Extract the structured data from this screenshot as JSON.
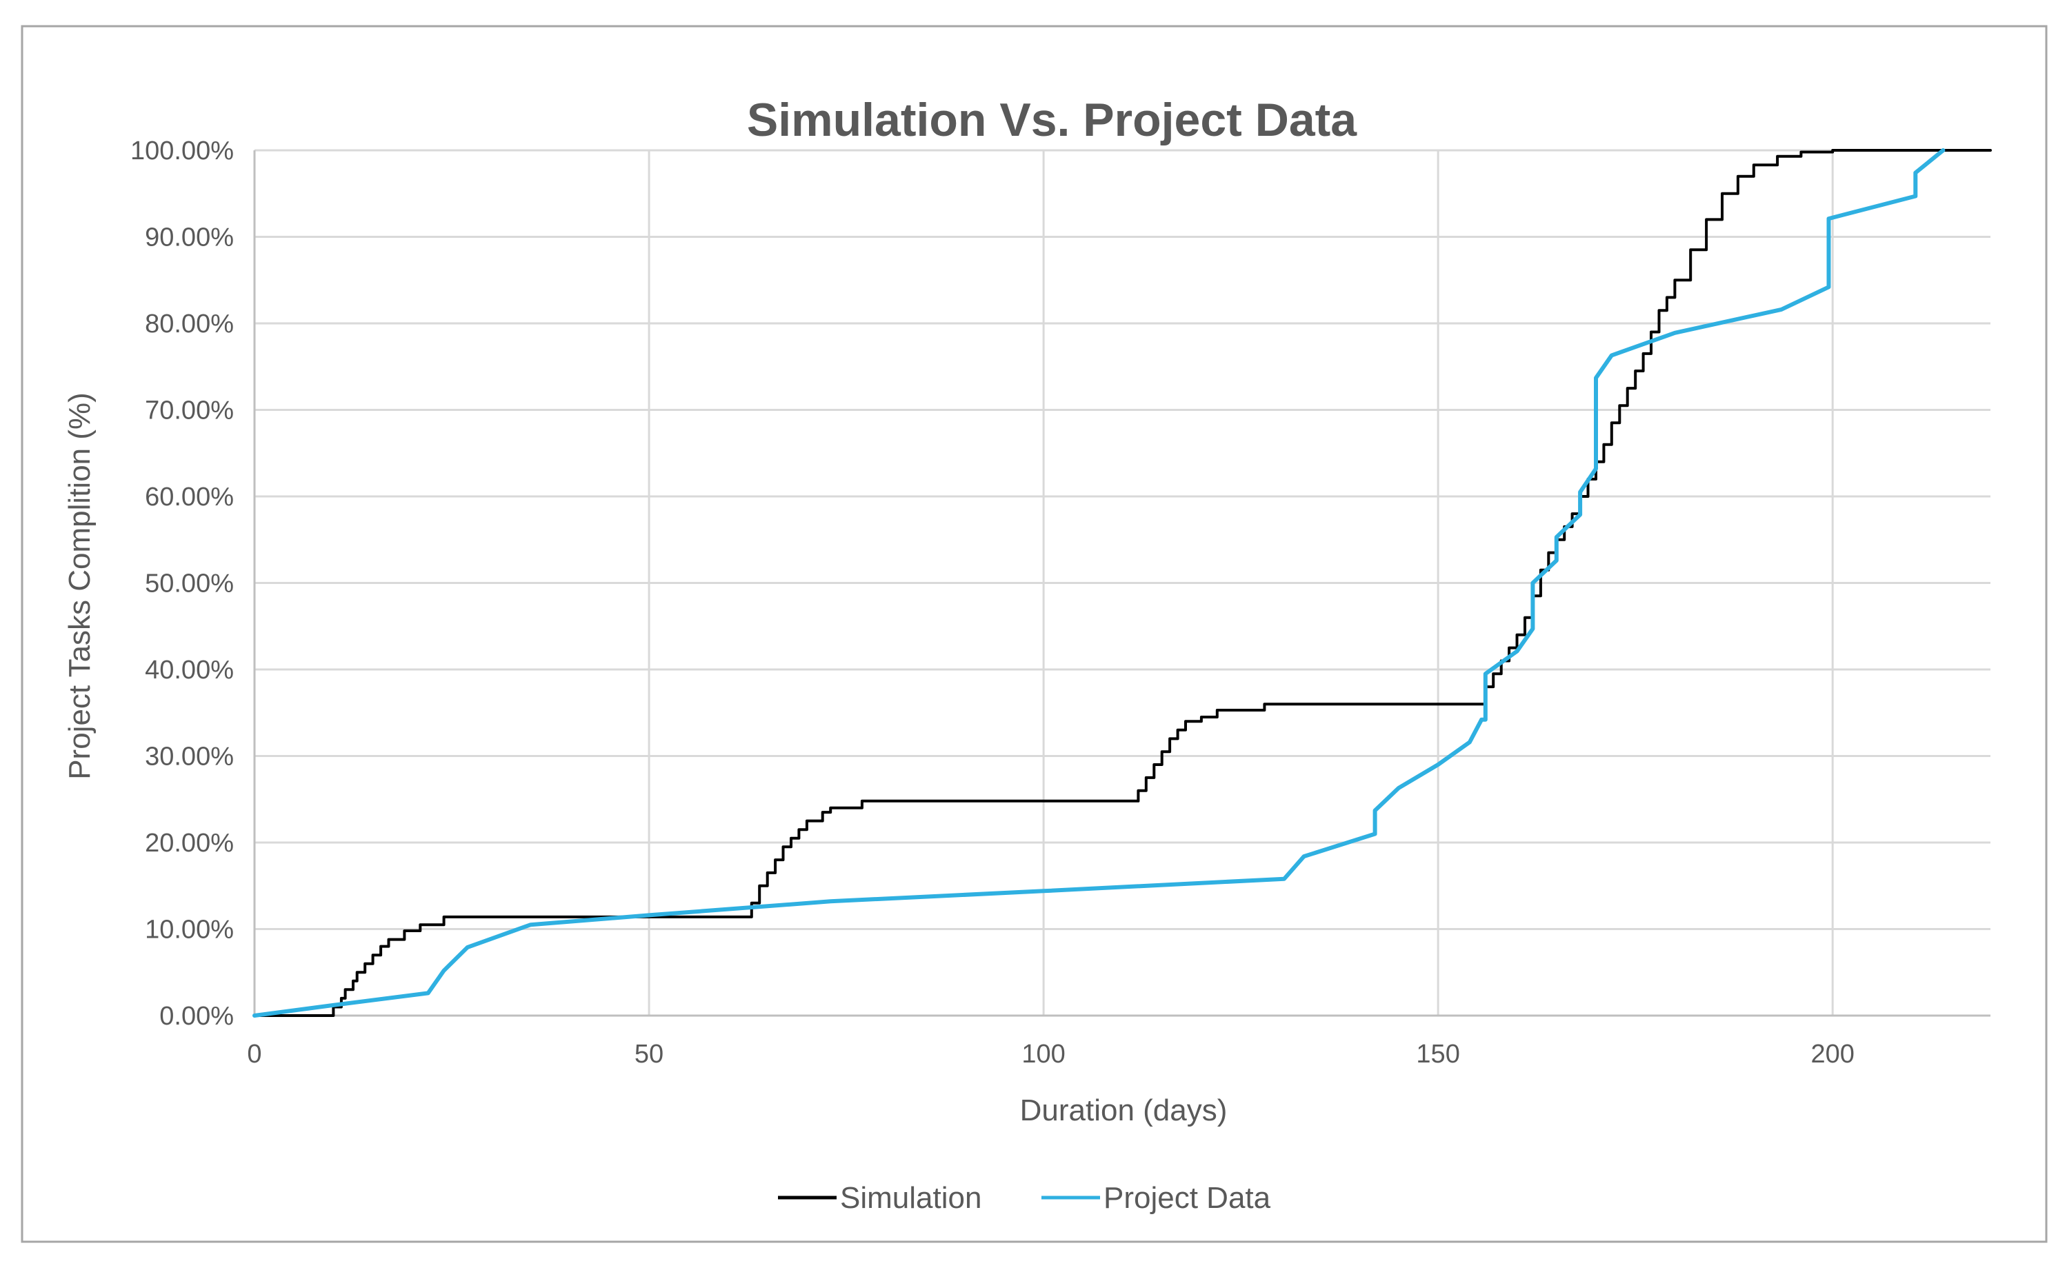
{
  "chart_data": {
    "type": "line",
    "title": "Simulation Vs. Project Data",
    "xlabel": "Duration (days)",
    "ylabel": "Project Tasks Complition (%)",
    "xlim": [
      0,
      220
    ],
    "ylim": [
      0,
      100
    ],
    "x_ticks": [
      0,
      50,
      100,
      150,
      200
    ],
    "x_tick_labels": [
      "0",
      "50",
      "100",
      "150",
      "200"
    ],
    "y_ticks": [
      0,
      10,
      20,
      30,
      40,
      50,
      60,
      70,
      80,
      90,
      100
    ],
    "y_tick_labels": [
      "0.00%",
      "10.00%",
      "20.00%",
      "30.00%",
      "40.00%",
      "50.00%",
      "60.00%",
      "70.00%",
      "80.00%",
      "90.00%",
      "100.00%"
    ],
    "grid": true,
    "legend_position": "bottom-center",
    "series": [
      {
        "name": "Simulation",
        "color": "#000000",
        "step": true,
        "points": [
          [
            0,
            0
          ],
          [
            9.5,
            0
          ],
          [
            10,
            1
          ],
          [
            11,
            2
          ],
          [
            11.5,
            3
          ],
          [
            12.5,
            4
          ],
          [
            13,
            5
          ],
          [
            14,
            6
          ],
          [
            15,
            7
          ],
          [
            16,
            8
          ],
          [
            17,
            8.8
          ],
          [
            19,
            9.8
          ],
          [
            21,
            10.5
          ],
          [
            24,
            11.4
          ],
          [
            62,
            11.4
          ],
          [
            63,
            13
          ],
          [
            64,
            15
          ],
          [
            65,
            16.5
          ],
          [
            66,
            18
          ],
          [
            67,
            19.5
          ],
          [
            68,
            20.5
          ],
          [
            69,
            21.5
          ],
          [
            70,
            22.5
          ],
          [
            72,
            23.5
          ],
          [
            73,
            24
          ],
          [
            77,
            24.8
          ],
          [
            111,
            24.8
          ],
          [
            112,
            26
          ],
          [
            113,
            27.5
          ],
          [
            114,
            29
          ],
          [
            115,
            30.5
          ],
          [
            116,
            32
          ],
          [
            117,
            33
          ],
          [
            118,
            34
          ],
          [
            120,
            34.5
          ],
          [
            122,
            35.3
          ],
          [
            128,
            36
          ],
          [
            155,
            36
          ],
          [
            156,
            38
          ],
          [
            157,
            39.5
          ],
          [
            158,
            41
          ],
          [
            159,
            42.5
          ],
          [
            160,
            44
          ],
          [
            161,
            46
          ],
          [
            162,
            48.5
          ],
          [
            163,
            51.5
          ],
          [
            164,
            53.5
          ],
          [
            165,
            55
          ],
          [
            166,
            56.5
          ],
          [
            167,
            58
          ],
          [
            168,
            60
          ],
          [
            169,
            62
          ],
          [
            170,
            64
          ],
          [
            171,
            66
          ],
          [
            172,
            68.5
          ],
          [
            173,
            70.5
          ],
          [
            174,
            72.5
          ],
          [
            175,
            74.5
          ],
          [
            176,
            76.5
          ],
          [
            177,
            79
          ],
          [
            178,
            81.5
          ],
          [
            179,
            83
          ],
          [
            180,
            85
          ],
          [
            182,
            88.5
          ],
          [
            184,
            92
          ],
          [
            186,
            95
          ],
          [
            188,
            97
          ],
          [
            190,
            98.3
          ],
          [
            193,
            99.3
          ],
          [
            196,
            99.8
          ],
          [
            200,
            100
          ],
          [
            220,
            100
          ]
        ]
      },
      {
        "name": "Project Data",
        "color": "#2fb0e1",
        "step": false,
        "points": [
          [
            0,
            0
          ],
          [
            10,
            1.2
          ],
          [
            22,
            2.6
          ],
          [
            24,
            5.2
          ],
          [
            27,
            7.9
          ],
          [
            35,
            10.5
          ],
          [
            50,
            11.6
          ],
          [
            73,
            13.2
          ],
          [
            100,
            14.4
          ],
          [
            130.5,
            15.8
          ],
          [
            133,
            18.4
          ],
          [
            142,
            21
          ],
          [
            142,
            23.7
          ],
          [
            145,
            26.3
          ],
          [
            150,
            29
          ],
          [
            154,
            31.6
          ],
          [
            155.5,
            34.2
          ],
          [
            156,
            34.2
          ],
          [
            156,
            39.5
          ],
          [
            160,
            42.1
          ],
          [
            162,
            44.7
          ],
          [
            162,
            50
          ],
          [
            165,
            52.6
          ],
          [
            165,
            55.3
          ],
          [
            168,
            57.9
          ],
          [
            168,
            60.5
          ],
          [
            170,
            63.2
          ],
          [
            170,
            73.7
          ],
          [
            172,
            76.3
          ],
          [
            180,
            78.9
          ],
          [
            193.5,
            81.6
          ],
          [
            199.5,
            84.2
          ],
          [
            199.5,
            92.1
          ],
          [
            210.5,
            94.7
          ],
          [
            210.5,
            97.4
          ],
          [
            214,
            100
          ]
        ]
      }
    ]
  }
}
